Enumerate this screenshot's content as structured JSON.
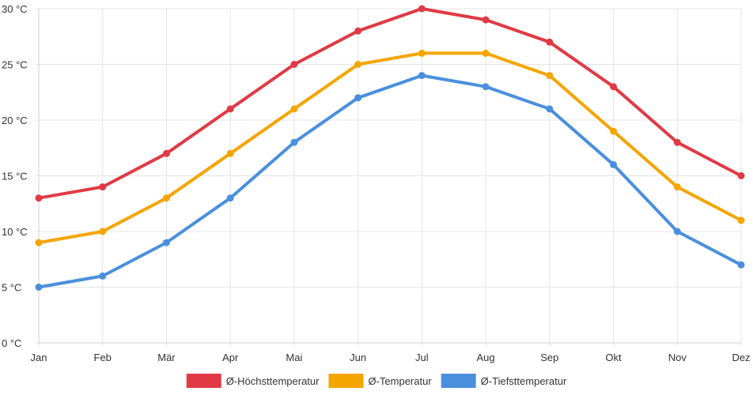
{
  "chart_data": {
    "type": "line",
    "categories": [
      "Jan",
      "Feb",
      "Mär",
      "Apr",
      "Mai",
      "Jun",
      "Jul",
      "Aug",
      "Sep",
      "Okt",
      "Nov",
      "Dez"
    ],
    "y_ticks": [
      0,
      5,
      10,
      15,
      20,
      25,
      30
    ],
    "y_unit": " °C",
    "ylim": [
      0,
      30
    ],
    "grid": true,
    "legend_position": "bottom",
    "series": [
      {
        "name": "Ø-Höchsttemperatur",
        "color": "#e03a45",
        "values": [
          13,
          14,
          17,
          21,
          25,
          28,
          30,
          29,
          27,
          23,
          18,
          15
        ]
      },
      {
        "name": "Ø-Temperatur",
        "color": "#f5a500",
        "values": [
          9,
          10,
          13,
          17,
          21,
          25,
          26,
          26,
          24,
          19,
          14,
          11
        ]
      },
      {
        "name": "Ø-Tiefsttemperatur",
        "color": "#4a8fde",
        "values": [
          5,
          6,
          9,
          13,
          18,
          22,
          24,
          23,
          21,
          16,
          10,
          7
        ]
      }
    ]
  }
}
